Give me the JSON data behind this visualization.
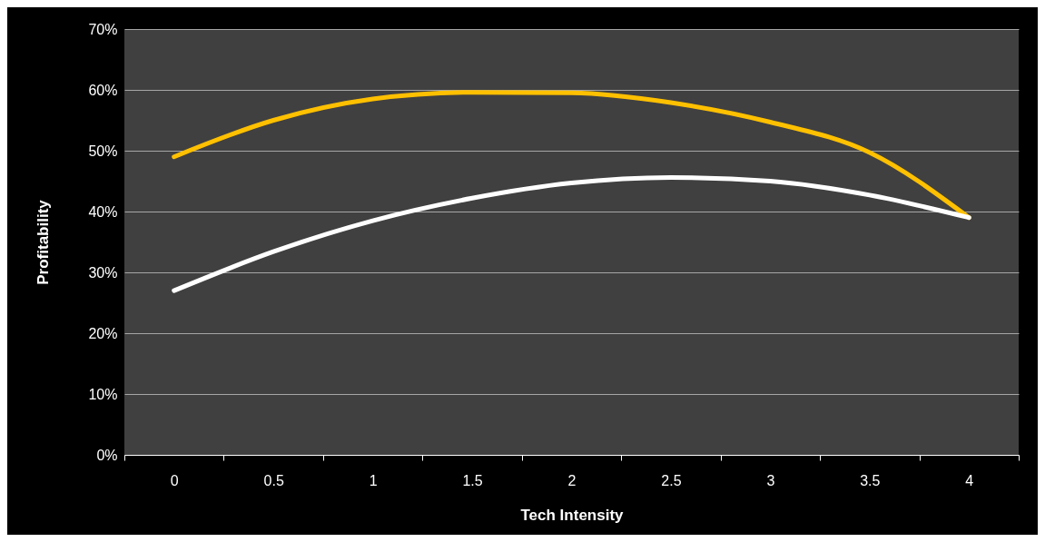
{
  "chart_data": {
    "type": "line",
    "xlabel": "Tech Intensity",
    "ylabel": "Profitability",
    "categories": [
      "0",
      "0.5",
      "1",
      "1.5",
      "2",
      "2.5",
      "3",
      "3.5",
      "4"
    ],
    "series": [
      {
        "color": "#ffc000",
        "values": [
          49,
          55,
          58.5,
          59.6,
          59.5,
          57.9,
          54.7,
          49.7,
          39
        ]
      },
      {
        "color": "#ffffff",
        "values": [
          27,
          33.4,
          38.5,
          42.2,
          44.7,
          45.6,
          45,
          42.7,
          39
        ]
      }
    ],
    "ylim": [
      0,
      70
    ],
    "yticks": [
      {
        "value": 0,
        "label": "0%"
      },
      {
        "value": 10,
        "label": "10%"
      },
      {
        "value": 20,
        "label": "20%"
      },
      {
        "value": 30,
        "label": "30%"
      },
      {
        "value": 40,
        "label": "40%"
      },
      {
        "value": 50,
        "label": "50%"
      },
      {
        "value": 60,
        "label": "60%"
      },
      {
        "value": 70,
        "label": "70%"
      }
    ],
    "grid": "y",
    "legend": false,
    "marker": "none",
    "line_style": "solid"
  }
}
